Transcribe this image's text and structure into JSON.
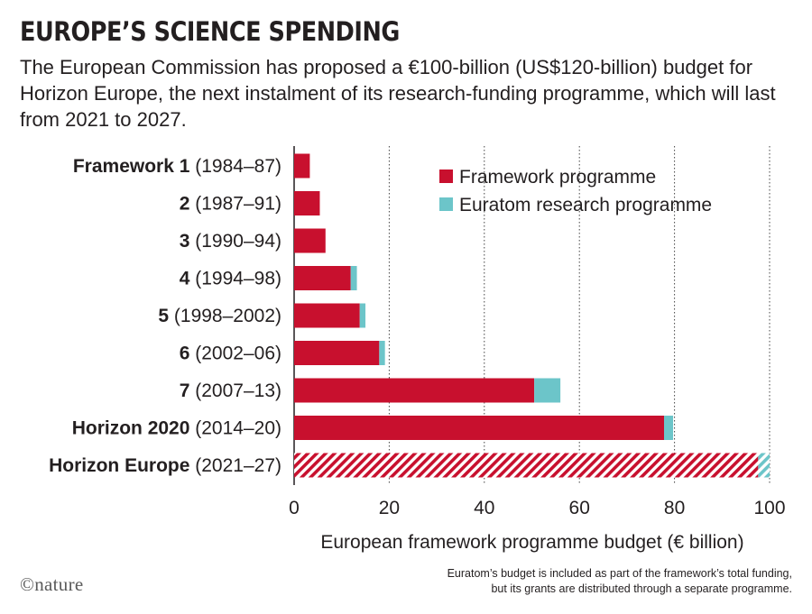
{
  "title": "EUROPE’S SCIENCE SPENDING",
  "subtitle": "The European Commission has proposed a €100-billion (US$120-billion) budget for Horizon Europe, the next instalment of its research-funding programme, which will last from 2021 to 2027.",
  "footnote_line1": "Euratom’s budget is included as part of the framework’s total funding,",
  "footnote_line2": "but its grants are distributed through a separate programme.",
  "logo": "©nature",
  "colors": {
    "framework": "#c8102e",
    "euratom": "#6cc5c9",
    "text": "#231f20",
    "grid": "#444444"
  },
  "chart_data": {
    "type": "bar",
    "orientation": "horizontal",
    "stacked": true,
    "categories": [
      {
        "name": "Framework 1",
        "period": "(1984–87)"
      },
      {
        "name": "2",
        "period": "(1987–91)"
      },
      {
        "name": "3",
        "period": "(1990–94)"
      },
      {
        "name": "4",
        "period": "(1994–98)"
      },
      {
        "name": "5",
        "period": "(1998–2002)"
      },
      {
        "name": "6",
        "period": "(2002–06)"
      },
      {
        "name": "7",
        "period": "(2007–13)"
      },
      {
        "name": "Horizon 2020",
        "period": "(2014–20)"
      },
      {
        "name": "Horizon Europe",
        "period": "(2021–27)"
      }
    ],
    "series": [
      {
        "name": "Framework programme",
        "color": "#c8102e",
        "values": [
          3.3,
          5.4,
          6.6,
          11.9,
          13.8,
          17.9,
          50.5,
          77.8,
          97.6
        ]
      },
      {
        "name": "Euratom research programme",
        "color": "#6cc5c9",
        "values": [
          0,
          0,
          0,
          1.3,
          1.2,
          1.2,
          5.5,
          1.9,
          2.4
        ]
      }
    ],
    "proposed_category": "Horizon Europe",
    "xlabel": "European framework programme budget (€ billion)",
    "xlim": [
      0,
      100
    ],
    "xticks": [
      0,
      20,
      40,
      60,
      80,
      100
    ],
    "grid": "vertical-dotted",
    "legend_position": "top-right"
  }
}
